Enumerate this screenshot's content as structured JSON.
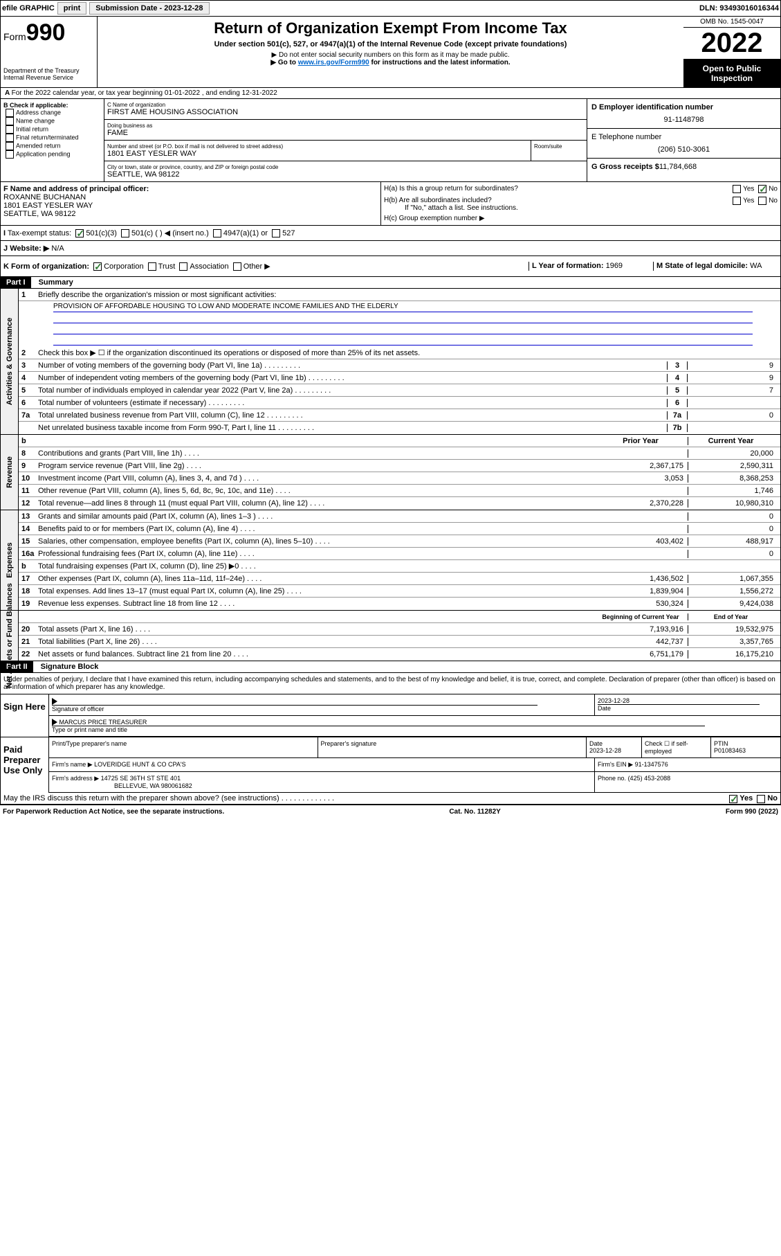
{
  "topbar": {
    "efile": "efile GRAPHIC",
    "print": "print",
    "sub_label": "Submission Date - 2023-12-28",
    "dln": "DLN: 93493016016344"
  },
  "header": {
    "form_label": "Form",
    "form_num": "990",
    "dept": "Department of the Treasury\nInternal Revenue Service",
    "title": "Return of Organization Exempt From Income Tax",
    "sub": "Under section 501(c), 527, or 4947(a)(1) of the Internal Revenue Code (except private foundations)",
    "note1": "▶ Do not enter social security numbers on this form as it may be made public.",
    "note2_pre": "▶ Go to ",
    "note2_link": "www.irs.gov/Form990",
    "note2_post": " for instructions and the latest information.",
    "omb": "OMB No. 1545-0047",
    "year": "2022",
    "open": "Open to Public Inspection"
  },
  "rowA": "For the 2022 calendar year, or tax year beginning 01-01-2022  , and ending 12-31-2022",
  "colB": {
    "hdr": "B Check if applicable:",
    "items": [
      "Address change",
      "Name change",
      "Initial return",
      "Final return/terminated",
      "Amended return",
      "Application pending"
    ]
  },
  "colC": {
    "name_lbl": "C Name of organization",
    "name": "FIRST AME HOUSING ASSOCIATION",
    "dba_lbl": "Doing business as",
    "dba": "FAME",
    "addr_lbl": "Number and street (or P.O. box if mail is not delivered to street address)",
    "room_lbl": "Room/suite",
    "addr": "1801 EAST YESLER WAY",
    "city_lbl": "City or town, state or province, country, and ZIP or foreign postal code",
    "city": "SEATTLE, WA  98122"
  },
  "colDE": {
    "d_lbl": "D Employer identification number",
    "d_val": "91-1148798",
    "e_lbl": "E Telephone number",
    "e_val": "(206) 510-3061",
    "g_lbl": "G Gross receipts $",
    "g_val": "11,784,668"
  },
  "rowF": {
    "lbl": "F Name and address of principal officer:",
    "name": "ROXANNE BUCHANAN",
    "addr1": "1801 EAST YESLER WAY",
    "addr2": "SEATTLE, WA  98122"
  },
  "rowH": {
    "ha": "H(a)  Is this a group return for subordinates?",
    "hb": "H(b)  Are all subordinates included?",
    "note": "If \"No,\" attach a list. See instructions.",
    "hc": "H(c)  Group exemption number ▶"
  },
  "rowI": {
    "lbl": "Tax-exempt status:",
    "opts": [
      "501(c)(3)",
      "501(c) (  ) ◀ (insert no.)",
      "4947(a)(1) or",
      "527"
    ]
  },
  "rowJ": {
    "lbl": "Website: ▶",
    "val": "N/A"
  },
  "rowK": {
    "lbl": "K Form of organization:",
    "opts": [
      "Corporation",
      "Trust",
      "Association",
      "Other ▶"
    ],
    "l_lbl": "L Year of formation:",
    "l_val": "1969",
    "m_lbl": "M State of legal domicile:",
    "m_val": "WA"
  },
  "part1": {
    "hdr": "Part I",
    "title": "Summary",
    "q1": "Briefly describe the organization's mission or most significant activities:",
    "mission": "PROVISION OF AFFORDABLE HOUSING TO LOW AND MODERATE INCOME FAMILIES AND THE ELDERLY",
    "q2": "Check this box ▶ ☐ if the organization discontinued its operations or disposed of more than 25% of its net assets.",
    "lines_gov": [
      {
        "n": "3",
        "t": "Number of voting members of the governing body (Part VI, line 1a)",
        "box": "3",
        "v": "9"
      },
      {
        "n": "4",
        "t": "Number of independent voting members of the governing body (Part VI, line 1b)",
        "box": "4",
        "v": "9"
      },
      {
        "n": "5",
        "t": "Total number of individuals employed in calendar year 2022 (Part V, line 2a)",
        "box": "5",
        "v": "7"
      },
      {
        "n": "6",
        "t": "Total number of volunteers (estimate if necessary)",
        "box": "6",
        "v": ""
      },
      {
        "n": "7a",
        "t": "Total unrelated business revenue from Part VIII, column (C), line 12",
        "box": "7a",
        "v": "0"
      },
      {
        "n": "",
        "t": "Net unrelated business taxable income from Form 990-T, Part I, line 11",
        "box": "7b",
        "v": ""
      }
    ],
    "col_hdrs": {
      "b": "b",
      "prior": "Prior Year",
      "current": "Current Year"
    },
    "rev": [
      {
        "n": "8",
        "t": "Contributions and grants (Part VIII, line 1h)",
        "p": "",
        "c": "20,000"
      },
      {
        "n": "9",
        "t": "Program service revenue (Part VIII, line 2g)",
        "p": "2,367,175",
        "c": "2,590,311"
      },
      {
        "n": "10",
        "t": "Investment income (Part VIII, column (A), lines 3, 4, and 7d )",
        "p": "3,053",
        "c": "8,368,253"
      },
      {
        "n": "11",
        "t": "Other revenue (Part VIII, column (A), lines 5, 6d, 8c, 9c, 10c, and 11e)",
        "p": "",
        "c": "1,746"
      },
      {
        "n": "12",
        "t": "Total revenue—add lines 8 through 11 (must equal Part VIII, column (A), line 12)",
        "p": "2,370,228",
        "c": "10,980,310"
      }
    ],
    "exp": [
      {
        "n": "13",
        "t": "Grants and similar amounts paid (Part IX, column (A), lines 1–3 )",
        "p": "",
        "c": "0"
      },
      {
        "n": "14",
        "t": "Benefits paid to or for members (Part IX, column (A), line 4)",
        "p": "",
        "c": "0"
      },
      {
        "n": "15",
        "t": "Salaries, other compensation, employee benefits (Part IX, column (A), lines 5–10)",
        "p": "403,402",
        "c": "488,917"
      },
      {
        "n": "16a",
        "t": "Professional fundraising fees (Part IX, column (A), line 11e)",
        "p": "",
        "c": "0"
      },
      {
        "n": "b",
        "t": "Total fundraising expenses (Part IX, column (D), line 25) ▶0",
        "p": "shade",
        "c": "shade"
      },
      {
        "n": "17",
        "t": "Other expenses (Part IX, column (A), lines 11a–11d, 11f–24e)",
        "p": "1,436,502",
        "c": "1,067,355"
      },
      {
        "n": "18",
        "t": "Total expenses. Add lines 13–17 (must equal Part IX, column (A), line 25)",
        "p": "1,839,904",
        "c": "1,556,272"
      },
      {
        "n": "19",
        "t": "Revenue less expenses. Subtract line 18 from line 12",
        "p": "530,324",
        "c": "9,424,038"
      }
    ],
    "net_hdrs": {
      "begin": "Beginning of Current Year",
      "end": "End of Year"
    },
    "net": [
      {
        "n": "20",
        "t": "Total assets (Part X, line 16)",
        "p": "7,193,916",
        "c": "19,532,975"
      },
      {
        "n": "21",
        "t": "Total liabilities (Part X, line 26)",
        "p": "442,737",
        "c": "3,357,765"
      },
      {
        "n": "22",
        "t": "Net assets or fund balances. Subtract line 21 from line 20",
        "p": "6,751,179",
        "c": "16,175,210"
      }
    ]
  },
  "part2": {
    "hdr": "Part II",
    "title": "Signature Block",
    "decl": "Under penalties of perjury, I declare that I have examined this return, including accompanying schedules and statements, and to the best of my knowledge and belief, it is true, correct, and complete. Declaration of preparer (other than officer) is based on all information of which preparer has any knowledge."
  },
  "sign": {
    "lbl": "Sign Here",
    "sig_lbl": "Signature of officer",
    "date_lbl": "Date",
    "date": "2023-12-28",
    "name": "MARCUS PRICE TREASURER",
    "name_lbl": "Type or print name and title"
  },
  "prep": {
    "lbl": "Paid Preparer Use Only",
    "h1": "Print/Type preparer's name",
    "h2": "Preparer's signature",
    "h3": "Date",
    "h3v": "2023-12-28",
    "h4": "Check ☐ if self-employed",
    "h5": "PTIN",
    "h5v": "P01083463",
    "firm_lbl": "Firm's name   ▶",
    "firm": "LOVERIDGE HUNT & CO CPA'S",
    "ein_lbl": "Firm's EIN ▶",
    "ein": "91-1347576",
    "addr_lbl": "Firm's address ▶",
    "addr1": "14725 SE 36TH ST STE 401",
    "addr2": "BELLEVUE, WA  980061682",
    "phone_lbl": "Phone no.",
    "phone": "(425) 453-2088"
  },
  "discuss": "May the IRS discuss this return with the preparer shown above? (see instructions)",
  "footer": {
    "left": "For Paperwork Reduction Act Notice, see the separate instructions.",
    "mid": "Cat. No. 11282Y",
    "right": "Form 990 (2022)"
  },
  "side_labels": {
    "gov": "Activities & Governance",
    "rev": "Revenue",
    "exp": "Expenses",
    "net": "Net Assets or Fund Balances"
  }
}
